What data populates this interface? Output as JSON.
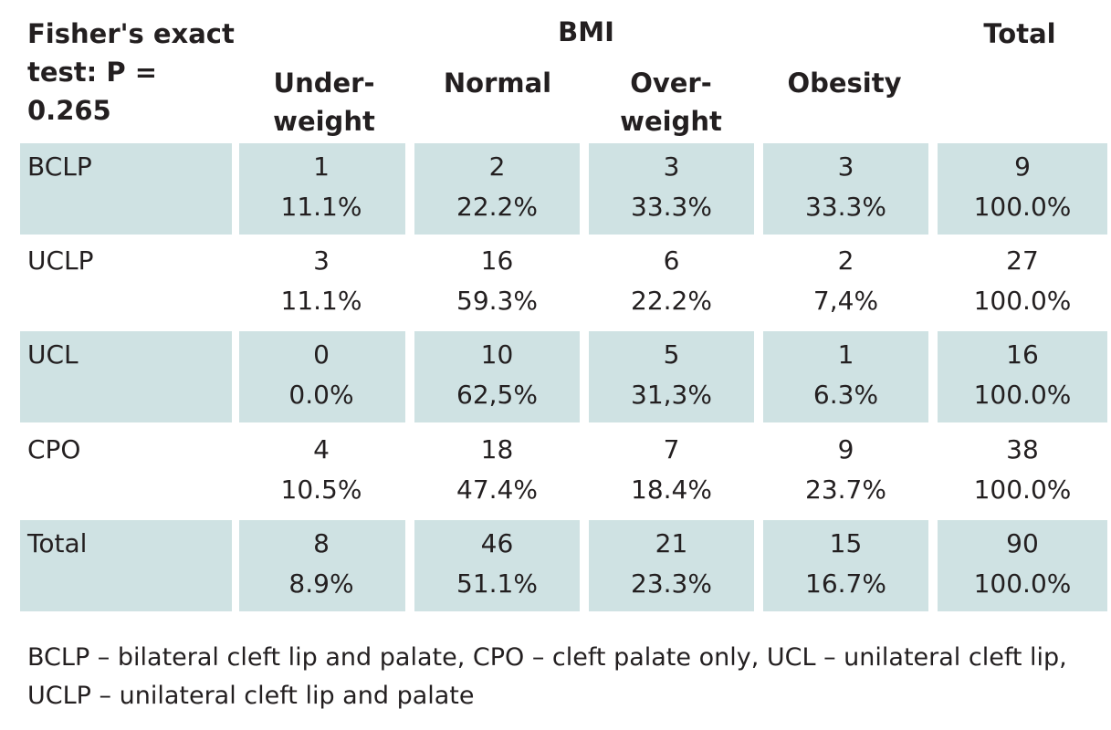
{
  "header": {
    "test_label": "Fisher's exact test: P = 0.265",
    "bmi_label": "BMI",
    "total_label": "Total",
    "columns": [
      "Under- weight",
      "Normal",
      "Over- weight",
      "Obesity"
    ]
  },
  "rows": [
    {
      "label": "BCLP",
      "counts": [
        "1",
        "2",
        "3",
        "3",
        "9"
      ],
      "percents": [
        "11.1%",
        "22.2%",
        "33.3%",
        "33.3%",
        "100.0%"
      ]
    },
    {
      "label": "UCLP",
      "counts": [
        "3",
        "16",
        "6",
        "2",
        "27"
      ],
      "percents": [
        "11.1%",
        "59.3%",
        "22.2%",
        "7,4%",
        "100.0%"
      ]
    },
    {
      "label": "UCL",
      "counts": [
        "0",
        "10",
        "5",
        "1",
        "16"
      ],
      "percents": [
        "0.0%",
        "62,5%",
        "31,3%",
        "6.3%",
        "100.0%"
      ]
    },
    {
      "label": "CPO",
      "counts": [
        "4",
        "18",
        "7",
        "9",
        "38"
      ],
      "percents": [
        "10.5%",
        "47.4%",
        "18.4%",
        "23.7%",
        "100.0%"
      ]
    },
    {
      "label": "Total",
      "counts": [
        "8",
        "46",
        "21",
        "15",
        "90"
      ],
      "percents": [
        "8.9%",
        "51.1%",
        "23.3%",
        "16.7%",
        "100.0%"
      ]
    }
  ],
  "footnote": "BCLP – bilateral cleft lip and palate, CPO – cleft palate only, UCL – unilateral cleft lip, UCLP – unilateral cleft lip and palate",
  "colors": {
    "shade": "#cfe2e3",
    "text": "#231f20"
  }
}
